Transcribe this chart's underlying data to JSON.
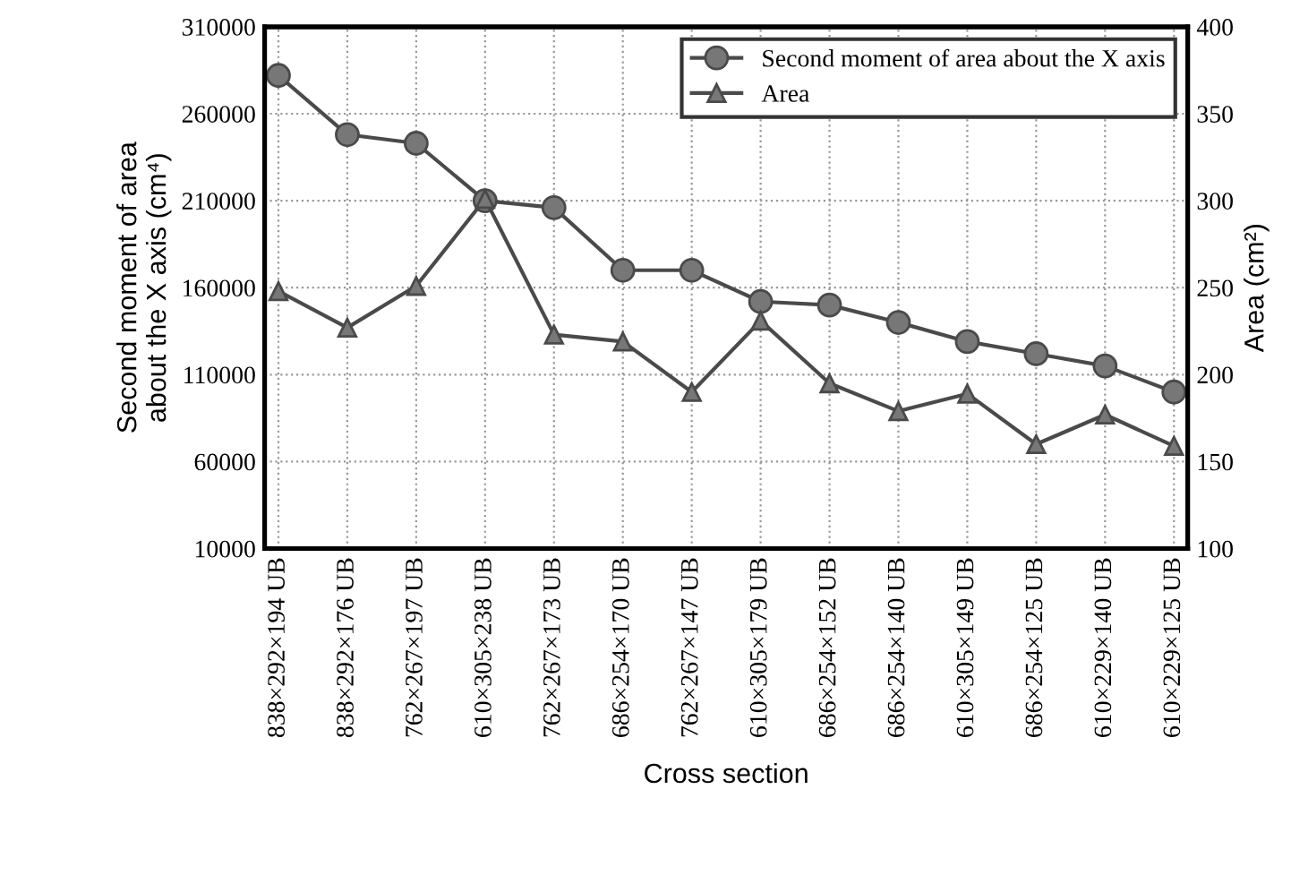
{
  "chart_data": {
    "type": "line",
    "xlabel": "Cross section",
    "ylabel": "Second moment of area\nabout the X axis (cm⁴)",
    "y2label": "Area (cm²)",
    "categories": [
      "838×292×194 UB",
      "838×292×176 UB",
      "762×267×197 UB",
      "610×305×238 UB",
      "762×267×173 UB",
      "686×254×170 UB",
      "762×267×147 UB",
      "610×305×179 UB",
      "686×254×152 UB",
      "686×254×140 UB",
      "610×305×149 UB",
      "686×254×125 UB",
      "610×229×140 UB",
      "610×229×125 UB"
    ],
    "series": [
      {
        "name": "Second moment of area about the X axis",
        "color": "#4a4a4a",
        "marker": "circle",
        "values": [
          282000,
          248000,
          243000,
          210000,
          206000,
          170000,
          170000,
          152000,
          150000,
          140000,
          129000,
          122000,
          115000,
          100000
        ]
      },
      {
        "name": "Area",
        "color": "#4a4a4a",
        "marker": "triangle",
        "axis": "y2",
        "values": [
          248,
          227,
          251,
          301,
          223,
          219,
          190,
          231,
          195,
          179,
          189,
          160,
          177,
          159
        ]
      }
    ],
    "ylim": [
      10000,
      310000
    ],
    "yticks": [
      10000,
      60000,
      110000,
      160000,
      210000,
      260000,
      310000
    ],
    "y2lim": [
      100,
      400
    ],
    "y2ticks": [
      100,
      150,
      200,
      250,
      300,
      350,
      400
    ],
    "grid": true,
    "legend": "top right",
    "line_style": "solid"
  }
}
